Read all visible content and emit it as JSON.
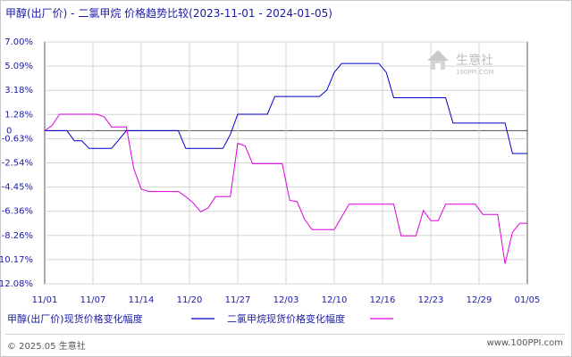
{
  "chart_data": {
    "type": "line",
    "title": "甲醇(出厂价) - 二氯甲烷 价格趋势比较(2023-11-01 - 2024-01-05)",
    "x_labels": [
      "11/01",
      "11/07",
      "11/14",
      "11/20",
      "11/27",
      "12/03",
      "12/10",
      "12/16",
      "12/23",
      "12/29",
      "01/05"
    ],
    "y_ticks": [
      "7.00%",
      "5.09%",
      "3.18%",
      "1.28%",
      "-0.63%",
      "-2.54%",
      "-4.45%",
      "-6.36%",
      "-8.26%",
      "-10.17%",
      "-12.08%"
    ],
    "y_zero_label": "0",
    "ylim": [
      -12.08,
      7.0
    ],
    "grid": true,
    "legend_position": "bottom",
    "series": [
      {
        "name": "甲醇(出厂价)现货价格变化幅度",
        "color": "#0000cc",
        "points": [
          [
            0,
            0
          ],
          [
            3,
            0
          ],
          [
            4,
            -0.8
          ],
          [
            5,
            -0.8
          ],
          [
            6,
            -1.4
          ],
          [
            9,
            -1.4
          ],
          [
            10,
            -0.7
          ],
          [
            11,
            0
          ],
          [
            18,
            0
          ],
          [
            19,
            -1.4
          ],
          [
            24,
            -1.4
          ],
          [
            25,
            -0.3
          ],
          [
            26,
            1.3
          ],
          [
            30,
            1.3
          ],
          [
            31,
            2.7
          ],
          [
            37,
            2.7
          ],
          [
            38,
            3.2
          ],
          [
            39,
            4.6
          ],
          [
            40,
            5.3
          ],
          [
            45,
            5.3
          ],
          [
            46,
            4.6
          ],
          [
            47,
            2.6
          ],
          [
            54,
            2.6
          ],
          [
            55,
            0.6
          ],
          [
            62,
            0.6
          ],
          [
            63,
            -1.8
          ],
          [
            65,
            -1.8
          ]
        ]
      },
      {
        "name": "二氯甲烷现货价格变化幅度",
        "color": "#dd00dd",
        "points": [
          [
            0,
            0
          ],
          [
            1,
            0.4
          ],
          [
            2,
            1.3
          ],
          [
            7,
            1.3
          ],
          [
            8,
            1.1
          ],
          [
            9,
            0.3
          ],
          [
            11,
            0.3
          ],
          [
            12,
            -3.0
          ],
          [
            13,
            -4.6
          ],
          [
            14,
            -4.8
          ],
          [
            18,
            -4.8
          ],
          [
            19,
            -5.2
          ],
          [
            20,
            -5.7
          ],
          [
            21,
            -6.4
          ],
          [
            22,
            -6.1
          ],
          [
            23,
            -5.2
          ],
          [
            25,
            -5.2
          ],
          [
            26,
            -1.0
          ],
          [
            27,
            -1.2
          ],
          [
            28,
            -2.6
          ],
          [
            32,
            -2.6
          ],
          [
            33,
            -5.5
          ],
          [
            34,
            -5.6
          ],
          [
            35,
            -7.0
          ],
          [
            36,
            -7.8
          ],
          [
            39,
            -7.8
          ],
          [
            40,
            -6.8
          ],
          [
            41,
            -5.8
          ],
          [
            47,
            -5.8
          ],
          [
            48,
            -8.3
          ],
          [
            50,
            -8.3
          ],
          [
            51,
            -6.3
          ],
          [
            52,
            -7.1
          ],
          [
            53,
            -7.1
          ],
          [
            54,
            -5.8
          ],
          [
            58,
            -5.8
          ],
          [
            59,
            -6.6
          ],
          [
            61,
            -6.6
          ],
          [
            62,
            -10.5
          ],
          [
            63,
            -8.0
          ],
          [
            64,
            -7.3
          ],
          [
            65,
            -7.3
          ]
        ]
      }
    ]
  },
  "watermark": {
    "name": "生意社",
    "site": "100PPI.COM"
  },
  "footer": {
    "left": "© 2025.05 生意社",
    "right": "www.100PPI.com"
  }
}
